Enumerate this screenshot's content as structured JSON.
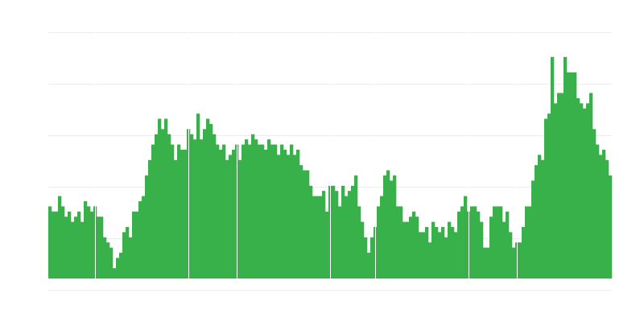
{
  "chart_data": {
    "type": "bar",
    "title": "",
    "xlabel": "",
    "ylabel": "",
    "grid": true,
    "legend": "none",
    "ylim": [
      0,
      47.8
    ],
    "bar_color": "#39b14b",
    "grid_color": "#ececec",
    "values": [
      14,
      13,
      13,
      16,
      14,
      12,
      13,
      11,
      12,
      13,
      11,
      15,
      14,
      13,
      14,
      12,
      12,
      8,
      7,
      6,
      2,
      4,
      5,
      9,
      10,
      8,
      13,
      13,
      15,
      16,
      20,
      23,
      26,
      28,
      31,
      29,
      31,
      28,
      26,
      23,
      26,
      25,
      25,
      29,
      28,
      27,
      32,
      27,
      29,
      31,
      30,
      28,
      26,
      25,
      26,
      23,
      24,
      25,
      26,
      23,
      26,
      27,
      26,
      28,
      27,
      26,
      26,
      25,
      27,
      26,
      26,
      24,
      26,
      25,
      24,
      26,
      24,
      25,
      22,
      21,
      21,
      18,
      16,
      16,
      16,
      17,
      13,
      18,
      18,
      17,
      14,
      18,
      16,
      17,
      18,
      20,
      14,
      11,
      8,
      5,
      8,
      10,
      14,
      16,
      20,
      21,
      19,
      20,
      14,
      14,
      11,
      11,
      12,
      13,
      12,
      9,
      9,
      10,
      7,
      11,
      10,
      9,
      10,
      8,
      11,
      10,
      9,
      13,
      14,
      16,
      13,
      14,
      14,
      13,
      11,
      6,
      6,
      12,
      14,
      14,
      14,
      11,
      13,
      9,
      6,
      7,
      7,
      10,
      14,
      14,
      19,
      22,
      24,
      23,
      31,
      32,
      43,
      34,
      36,
      36,
      43,
      40,
      40,
      40,
      35,
      34,
      33,
      34,
      36,
      29,
      26,
      24,
      25,
      23,
      20
    ],
    "separators_before_index": [
      15,
      44,
      59,
      88,
      102,
      131,
      146
    ]
  }
}
